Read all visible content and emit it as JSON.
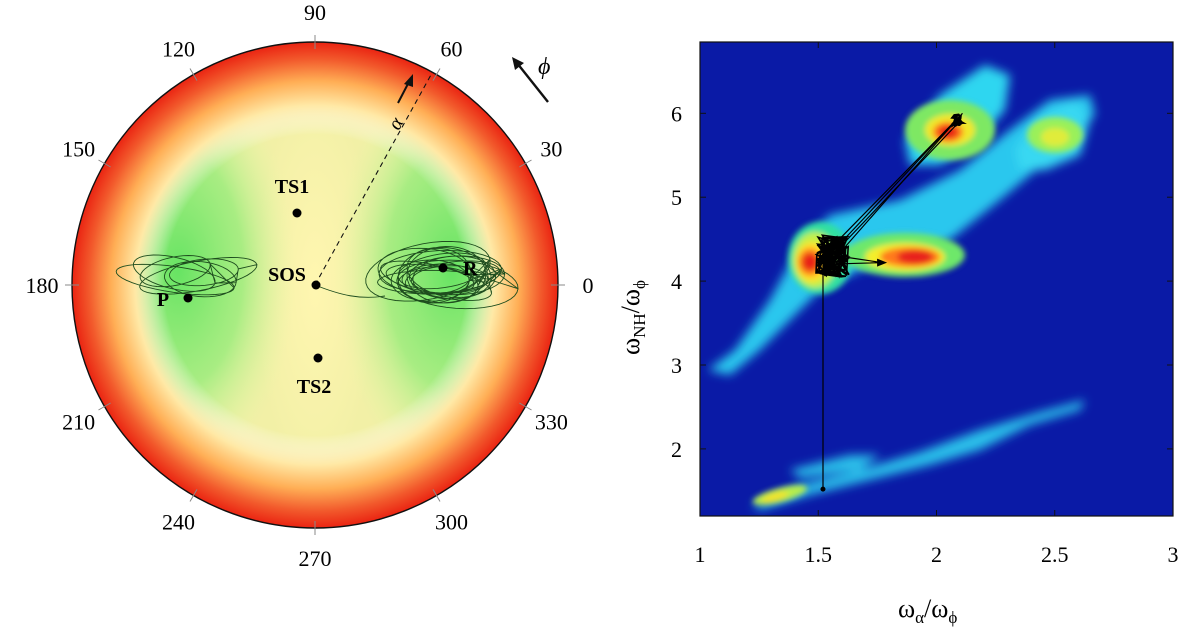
{
  "figure": {
    "polar_panel": {
      "angle_ticks": [
        "0",
        "30",
        "60",
        "90",
        "120",
        "150",
        "180",
        "210",
        "240",
        "270",
        "300",
        "330"
      ],
      "alpha_label": "α",
      "phi_label": "ϕ"
    },
    "heatmap_panel": {
      "xlabel": {
        "main": "ω",
        "sub1": "α",
        "sep": "/ω",
        "sub2": "ϕ"
      },
      "ylabel": {
        "main": "ω",
        "sub1": "NH",
        "sep": "/ω",
        "sub2": "ϕ"
      }
    }
  },
  "chart_data": [
    {
      "type": "scatter",
      "subtype": "polar-energy-map",
      "angles_deg": [
        0,
        30,
        60,
        90,
        120,
        150,
        180,
        210,
        240,
        270,
        300,
        330
      ],
      "colormap": "green center → yellow → red rim",
      "points": [
        {
          "label": "R",
          "angle_deg": 4,
          "radius_frac": 0.58
        },
        {
          "label": "P",
          "angle_deg": 183,
          "radius_frac": 0.59
        },
        {
          "label": "TS1",
          "angle_deg": 96,
          "radius_frac": 0.37
        },
        {
          "label": "TS2",
          "angle_deg": 270,
          "radius_frac": 0.33
        },
        {
          "label": "SOS",
          "angle_deg": 0,
          "radius_frac": 0.0
        }
      ],
      "alpha_direction_deg": 62,
      "trajectories": [
        "loops around R",
        "loops around P",
        "path connecting SOS to R"
      ]
    },
    {
      "type": "heatmap",
      "xlim": [
        1,
        3
      ],
      "ylim": [
        1.2,
        6.85
      ],
      "xticks": [
        "1",
        "1.5",
        "2",
        "2.5",
        "3"
      ],
      "yticks": [
        "2",
        "3",
        "4",
        "5",
        "6"
      ],
      "grid": false,
      "colormap": "jet",
      "hotspots": [
        {
          "x": 1.5,
          "y": 4.3,
          "intensity": 1.0
        },
        {
          "x": 1.95,
          "y": 4.3,
          "intensity": 0.95
        },
        {
          "x": 2.05,
          "y": 5.85,
          "intensity": 0.9
        },
        {
          "x": 2.5,
          "y": 5.7,
          "intensity": 0.55
        },
        {
          "x": 1.45,
          "y": 1.45,
          "intensity": 0.4
        }
      ],
      "trajectory": [
        {
          "x": 1.52,
          "y": 1.52
        },
        {
          "x": 1.52,
          "y": 4.3
        },
        {
          "x": 2.1,
          "y": 5.97
        },
        {
          "x": 1.58,
          "y": 4.3
        },
        {
          "x": 1.77,
          "y": 4.22
        },
        {
          "x": 1.52,
          "y": 4.2
        }
      ]
    }
  ]
}
